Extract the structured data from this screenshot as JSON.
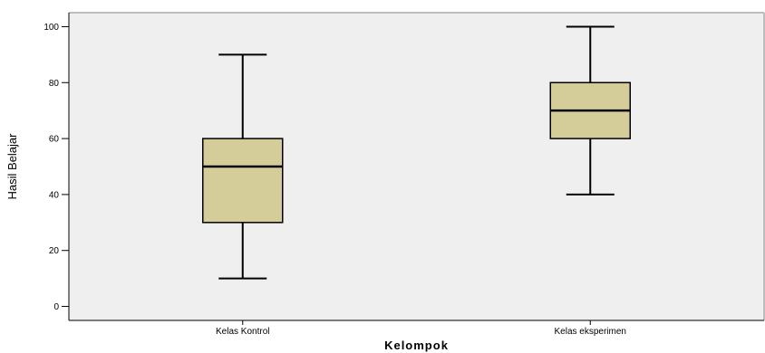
{
  "chart_data": {
    "type": "box",
    "title": "",
    "xlabel": "Kelompok",
    "ylabel": "Hasil Belajar",
    "ylim": [
      -5,
      105
    ],
    "yticks": [
      0,
      20,
      40,
      60,
      80,
      100
    ],
    "grid": false,
    "categories": [
      "Kelas Kontrol",
      "Kelas eksperimen"
    ],
    "boxes": [
      {
        "category": "Kelas Kontrol",
        "min": 10,
        "q1": 30,
        "median": 50,
        "q3": 60,
        "max": 90
      },
      {
        "category": "Kelas eksperimen",
        "min": 40,
        "q1": 60,
        "median": 70,
        "q3": 80,
        "max": 100
      }
    ],
    "colors": {
      "plot_background": "#efefef",
      "box_fill": "#d4cd99",
      "frame": "#bdbdbd"
    }
  }
}
